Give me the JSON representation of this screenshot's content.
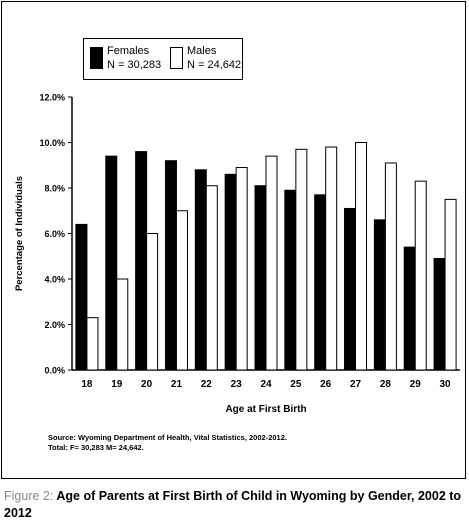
{
  "chart_data": {
    "type": "bar",
    "categories": [
      "18",
      "19",
      "20",
      "21",
      "22",
      "23",
      "24",
      "25",
      "26",
      "27",
      "28",
      "29",
      "30"
    ],
    "series": [
      {
        "name": "Females",
        "values": [
          6.4,
          9.4,
          9.6,
          9.2,
          8.8,
          8.6,
          8.1,
          7.9,
          7.7,
          7.1,
          6.6,
          5.4,
          4.9
        ]
      },
      {
        "name": "Males",
        "values": [
          2.3,
          4.0,
          6.0,
          7.0,
          8.1,
          8.9,
          9.4,
          9.7,
          9.8,
          10.0,
          9.1,
          8.3,
          7.5
        ]
      }
    ],
    "xlabel": "Age at First Birth",
    "ylabel": "Percentage of Individuals",
    "ylim": [
      0,
      12
    ],
    "yticks": [
      "0.0%",
      "2.0%",
      "4.0%",
      "6.0%",
      "8.0%",
      "10.0%",
      "12.0%"
    ],
    "grid": false,
    "legend": {
      "placement": "top-left",
      "items": [
        {
          "label": "Females",
          "n": "N = 30,283",
          "color": "#000000"
        },
        {
          "label": "Males",
          "n": "N = 24,642",
          "color": "#ffffff"
        }
      ]
    }
  },
  "source_note": "Source: Wyoming Department of Health, Vital Statistics, 2002-2012.",
  "total_note": "Total: F= 30,283 M= 24,642.",
  "caption": {
    "lead": "Figure 2:",
    "text": "Age of Parents at First Birth of Child in Wyoming by Gender, 2002 to 2012"
  }
}
